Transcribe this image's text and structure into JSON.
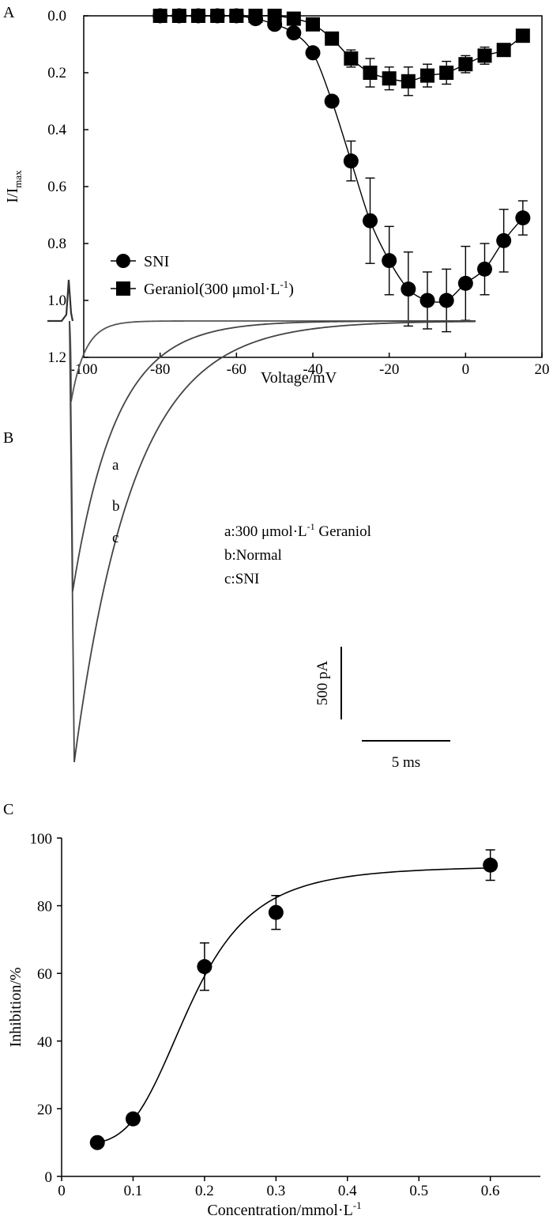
{
  "panels": {
    "A": "A",
    "B": "B",
    "C": "C"
  },
  "chart_data": [
    {
      "panel": "A",
      "type": "scatter",
      "xlabel": "Voltage/mV",
      "ylabel_main": "I/I",
      "ylabel_sub": "max",
      "xlim": [
        -100,
        20
      ],
      "ylim": [
        0.0,
        1.2
      ],
      "y_inverted": true,
      "xticks": [
        -100,
        -80,
        -60,
        -40,
        -20,
        0,
        20
      ],
      "xtick_labels": [
        "-100",
        "-80",
        "-60",
        "-40",
        "-20",
        "0",
        "20"
      ],
      "yticks": [
        0.0,
        0.2,
        0.4,
        0.6,
        0.8,
        1.0,
        1.2
      ],
      "ytick_labels": [
        "0.0",
        "0.2",
        "0.4",
        "0.6",
        "0.8",
        "1.0",
        "1.2"
      ],
      "legend_position": "bottom-left",
      "series": [
        {
          "name": "SNI",
          "marker": "circle",
          "x": [
            -80,
            -75,
            -70,
            -65,
            -60,
            -55,
            -50,
            -45,
            -40,
            -35,
            -30,
            -25,
            -20,
            -15,
            -10,
            -5,
            0,
            5,
            10,
            15
          ],
          "y": [
            0.0,
            0.0,
            0.0,
            0.0,
            0.0,
            0.01,
            0.03,
            0.06,
            0.13,
            0.3,
            0.51,
            0.72,
            0.86,
            0.96,
            1.0,
            1.0,
            0.94,
            0.89,
            0.79,
            0.71
          ],
          "err": [
            0,
            0,
            0,
            0,
            0,
            0,
            0,
            0,
            0,
            0,
            0.07,
            0.15,
            0.12,
            0.13,
            0.1,
            0.11,
            0.13,
            0.09,
            0.11,
            0.06
          ]
        },
        {
          "name": "Geraniol(300 μmol·L",
          "name_sup": "-1",
          "name_end": ")",
          "marker": "square",
          "x": [
            -80,
            -75,
            -70,
            -65,
            -60,
            -55,
            -50,
            -45,
            -40,
            -35,
            -30,
            -25,
            -20,
            -15,
            -10,
            -5,
            0,
            5,
            10,
            15
          ],
          "y": [
            0.0,
            0.0,
            0.0,
            0.0,
            0.0,
            0.0,
            0.0,
            0.01,
            0.03,
            0.08,
            0.15,
            0.2,
            0.22,
            0.23,
            0.21,
            0.2,
            0.17,
            0.14,
            0.12,
            0.07
          ],
          "err": [
            0,
            0,
            0,
            0,
            0,
            0,
            0,
            0,
            0,
            0,
            0.03,
            0.05,
            0.04,
            0.05,
            0.04,
            0.04,
            0.03,
            0.03,
            0,
            0
          ]
        }
      ]
    },
    {
      "panel": "B",
      "type": "line",
      "series": [
        {
          "name": "a",
          "peak": 0.17
        },
        {
          "name": "b",
          "peak": 0.57
        },
        {
          "name": "c",
          "peak": 0.93
        }
      ],
      "legend": [
        "a:300 μmol·L",
        "-1",
        " Geraniol",
        "b:Normal",
        "c:SNI"
      ],
      "scale_y": "500 pA",
      "scale_x": "5 ms"
    },
    {
      "panel": "C",
      "type": "scatter",
      "xlabel": "Concentration/mmol·L",
      "xlabel_sup": "-1",
      "ylabel": "Inhibition/%",
      "xlim": [
        0,
        0.67
      ],
      "ylim": [
        0,
        100
      ],
      "xticks": [
        0,
        0.1,
        0.2,
        0.3,
        0.4,
        0.5,
        0.6
      ],
      "xtick_labels": [
        "0",
        "0.1",
        "0.2",
        "0.3",
        "0.4",
        "0.5",
        "0.6"
      ],
      "yticks": [
        0,
        20,
        40,
        60,
        80,
        100
      ],
      "ytick_labels": [
        "0",
        "20",
        "40",
        "60",
        "80",
        "100"
      ],
      "x": [
        0.05,
        0.1,
        0.2,
        0.3,
        0.6
      ],
      "y": [
        10,
        17,
        62,
        78,
        92
      ],
      "err": [
        0,
        0,
        7,
        5,
        4.5
      ],
      "fit": {
        "bottom": 9.5,
        "top": 91.8,
        "ec50": 0.18,
        "hill": 4.0
      }
    }
  ]
}
